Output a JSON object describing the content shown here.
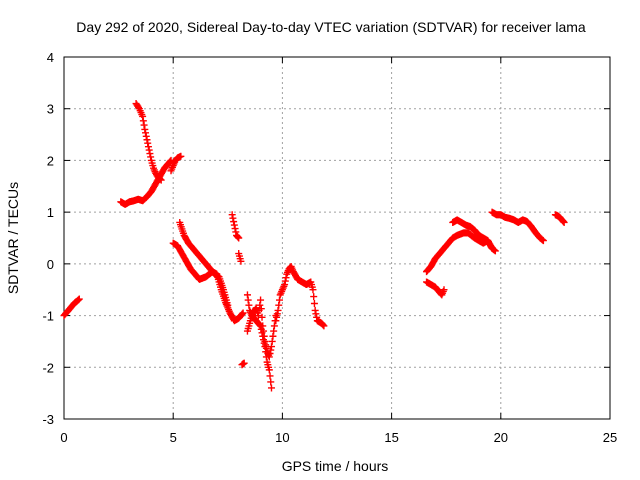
{
  "chart_data": {
    "type": "scatter",
    "title": "Day 292 of 2020, Sidereal Day-to-day VTEC variation (SDTVAR) for receiver lama",
    "xlabel": "GPS time / hours",
    "ylabel": "SDTVAR / TECUs",
    "xlim": [
      0,
      25
    ],
    "ylim": [
      -3,
      4
    ],
    "xticks": [
      "0",
      "5",
      "10",
      "15",
      "20",
      "25"
    ],
    "yticks": [
      "-3",
      "-2",
      "-1",
      "0",
      "1",
      "2",
      "3",
      "4"
    ],
    "grid": true,
    "marker": "+",
    "marker_color": "#ff0000",
    "series": [
      {
        "segments": [
          [
            [
              0.0,
              -1.0
            ],
            [
              0.1,
              -0.95
            ],
            [
              0.2,
              -0.9
            ],
            [
              0.3,
              -0.85
            ],
            [
              0.4,
              -0.8
            ],
            [
              0.5,
              -0.75
            ],
            [
              0.6,
              -0.72
            ],
            [
              0.7,
              -0.68
            ]
          ],
          [
            [
              2.6,
              1.2
            ],
            [
              2.8,
              1.15
            ],
            [
              3.0,
              1.2
            ],
            [
              3.2,
              1.22
            ],
            [
              3.4,
              1.25
            ],
            [
              3.6,
              1.22
            ],
            [
              3.8,
              1.3
            ],
            [
              4.0,
              1.4
            ],
            [
              4.2,
              1.55
            ],
            [
              4.4,
              1.7
            ],
            [
              4.6,
              1.85
            ],
            [
              4.8,
              1.95
            ],
            [
              4.9,
              2.0
            ]
          ],
          [
            [
              3.3,
              3.1
            ],
            [
              3.45,
              3.0
            ],
            [
              3.6,
              2.85
            ],
            [
              3.7,
              2.6
            ],
            [
              3.8,
              2.4
            ],
            [
              3.9,
              2.2
            ],
            [
              4.0,
              2.0
            ],
            [
              4.1,
              1.85
            ],
            [
              4.2,
              1.75
            ],
            [
              4.3,
              1.68
            ],
            [
              4.45,
              1.62
            ]
          ],
          [
            [
              4.9,
              1.8
            ],
            [
              5.0,
              1.9
            ],
            [
              5.1,
              2.0
            ],
            [
              5.2,
              2.05
            ],
            [
              5.35,
              2.08
            ]
          ],
          [
            [
              5.0,
              0.4
            ],
            [
              5.2,
              0.35
            ],
            [
              5.4,
              0.2
            ],
            [
              5.6,
              0.05
            ],
            [
              5.8,
              -0.1
            ],
            [
              6.0,
              -0.2
            ],
            [
              6.2,
              -0.3
            ],
            [
              6.5,
              -0.25
            ],
            [
              6.8,
              -0.15
            ],
            [
              7.0,
              -0.2
            ],
            [
              7.2,
              -0.5
            ],
            [
              7.4,
              -0.75
            ],
            [
              7.6,
              -0.95
            ],
            [
              7.8,
              -1.1
            ],
            [
              8.0,
              -1.05
            ],
            [
              8.2,
              -0.95
            ]
          ],
          [
            [
              5.3,
              0.8
            ],
            [
              5.5,
              0.55
            ],
            [
              5.7,
              0.4
            ],
            [
              5.9,
              0.3
            ],
            [
              6.1,
              0.2
            ],
            [
              6.3,
              0.1
            ],
            [
              6.5,
              0.0
            ],
            [
              6.7,
              -0.1
            ],
            [
              6.9,
              -0.2
            ],
            [
              7.1,
              -0.25
            ],
            [
              7.3,
              -0.5
            ],
            [
              7.5,
              -0.8
            ]
          ],
          [
            [
              7.7,
              0.95
            ],
            [
              7.8,
              0.75
            ],
            [
              7.9,
              0.55
            ],
            [
              8.0,
              0.5
            ]
          ],
          [
            [
              8.0,
              0.2
            ],
            [
              8.1,
              0.05
            ]
          ],
          [
            [
              8.15,
              -1.95
            ],
            [
              8.25,
              -1.92
            ]
          ],
          [
            [
              8.4,
              -0.6
            ],
            [
              8.5,
              -0.9
            ],
            [
              8.6,
              -1.0
            ],
            [
              8.8,
              -1.1
            ],
            [
              9.0,
              -1.2
            ],
            [
              9.1,
              -1.4
            ],
            [
              9.2,
              -1.6
            ],
            [
              9.3,
              -1.9
            ],
            [
              9.4,
              -2.05
            ],
            [
              9.5,
              -2.4
            ]
          ],
          [
            [
              8.4,
              -1.3
            ],
            [
              8.6,
              -1.0
            ],
            [
              8.8,
              -0.85
            ],
            [
              8.9,
              -1.0
            ],
            [
              9.0,
              -0.7
            ],
            [
              9.1,
              -1.2
            ],
            [
              9.2,
              -1.5
            ],
            [
              9.3,
              -1.7
            ],
            [
              9.4,
              -1.8
            ],
            [
              9.5,
              -1.6
            ],
            [
              9.6,
              -1.3
            ],
            [
              9.7,
              -1.0
            ]
          ],
          [
            [
              9.7,
              -1.1
            ],
            [
              9.8,
              -0.9
            ],
            [
              9.9,
              -0.6
            ],
            [
              10.0,
              -0.5
            ],
            [
              10.1,
              -0.4
            ],
            [
              10.2,
              -0.2
            ],
            [
              10.3,
              -0.1
            ],
            [
              10.4,
              -0.05
            ],
            [
              10.5,
              -0.15
            ],
            [
              10.7,
              -0.3
            ],
            [
              10.9,
              -0.35
            ],
            [
              11.1,
              -0.4
            ],
            [
              11.3,
              -0.35
            ],
            [
              11.4,
              -0.5
            ],
            [
              11.5,
              -0.9
            ],
            [
              11.6,
              -1.1
            ],
            [
              11.8,
              -1.15
            ],
            [
              11.9,
              -1.2
            ]
          ],
          [
            [
              16.6,
              -0.15
            ],
            [
              16.8,
              -0.05
            ],
            [
              17.0,
              0.1
            ],
            [
              17.2,
              0.2
            ],
            [
              17.4,
              0.3
            ],
            [
              17.6,
              0.4
            ],
            [
              17.8,
              0.5
            ],
            [
              18.0,
              0.55
            ],
            [
              18.3,
              0.6
            ],
            [
              18.5,
              0.6
            ],
            [
              18.8,
              0.5
            ],
            [
              19.0,
              0.45
            ],
            [
              19.2,
              0.4
            ],
            [
              19.4,
              0.45
            ],
            [
              19.6,
              0.3
            ],
            [
              19.75,
              0.25
            ]
          ],
          [
            [
              16.6,
              -0.35
            ],
            [
              16.8,
              -0.4
            ],
            [
              17.0,
              -0.45
            ],
            [
              17.2,
              -0.55
            ],
            [
              17.3,
              -0.6
            ],
            [
              17.4,
              -0.5
            ]
          ],
          [
            [
              17.8,
              0.8
            ],
            [
              18.0,
              0.85
            ],
            [
              18.2,
              0.8
            ],
            [
              18.4,
              0.75
            ],
            [
              18.6,
              0.72
            ],
            [
              18.8,
              0.65
            ],
            [
              19.0,
              0.55
            ],
            [
              19.2,
              0.5
            ],
            [
              19.4,
              0.45
            ],
            [
              19.6,
              0.3
            ]
          ],
          [
            [
              19.6,
              1.0
            ],
            [
              19.8,
              0.95
            ],
            [
              20.0,
              0.95
            ],
            [
              20.2,
              0.9
            ],
            [
              20.4,
              0.88
            ],
            [
              20.6,
              0.85
            ],
            [
              20.8,
              0.8
            ],
            [
              21.0,
              0.85
            ],
            [
              21.2,
              0.82
            ],
            [
              21.4,
              0.72
            ],
            [
              21.6,
              0.6
            ],
            [
              21.8,
              0.5
            ],
            [
              21.95,
              0.45
            ]
          ],
          [
            [
              22.5,
              0.95
            ],
            [
              22.6,
              0.93
            ],
            [
              22.7,
              0.9
            ],
            [
              22.8,
              0.85
            ],
            [
              22.9,
              0.8
            ]
          ]
        ]
      }
    ]
  }
}
